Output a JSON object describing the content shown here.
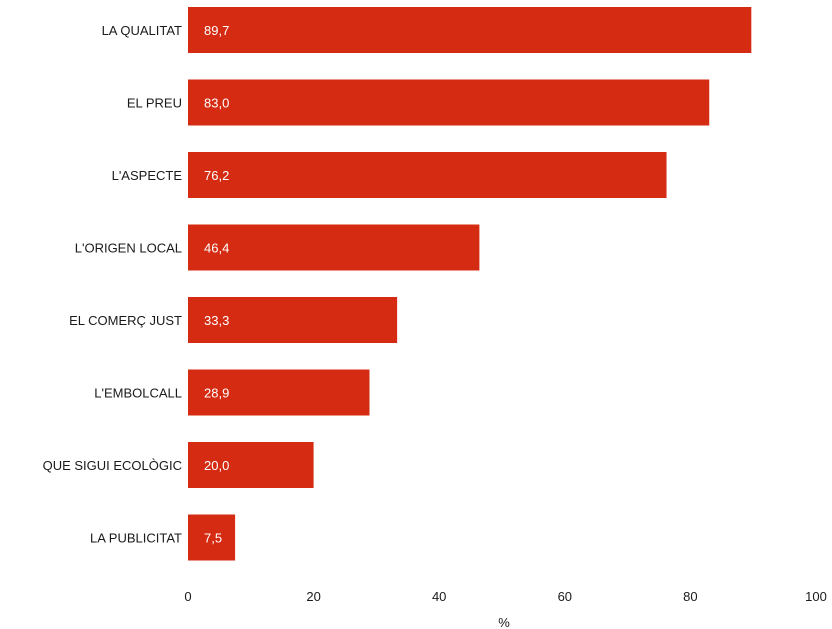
{
  "chart_data": {
    "type": "bar",
    "orientation": "horizontal",
    "categories": [
      "LA QUALITAT",
      "EL PREU",
      "L'ASPECTE",
      "L'ORIGEN LOCAL",
      "EL COMERÇ JUST",
      "L'EMBOLCALL",
      "QUE SIGUI ECOLÒGIC",
      "LA PUBLICITAT"
    ],
    "values": [
      89.7,
      83.0,
      76.2,
      46.4,
      33.3,
      28.9,
      20.0,
      7.5
    ],
    "value_labels": [
      "89,7",
      "83,0",
      "76,2",
      "46,4",
      "33,3",
      "28,9",
      "20,0",
      "7,5"
    ],
    "xlabel": "%",
    "xlim": [
      0,
      100
    ],
    "xticks": [
      0,
      20,
      40,
      60,
      80,
      100
    ],
    "xtick_labels": [
      "0",
      "20",
      "40",
      "60",
      "80",
      "100"
    ],
    "grid": false,
    "bar_color": "#d42b12"
  }
}
